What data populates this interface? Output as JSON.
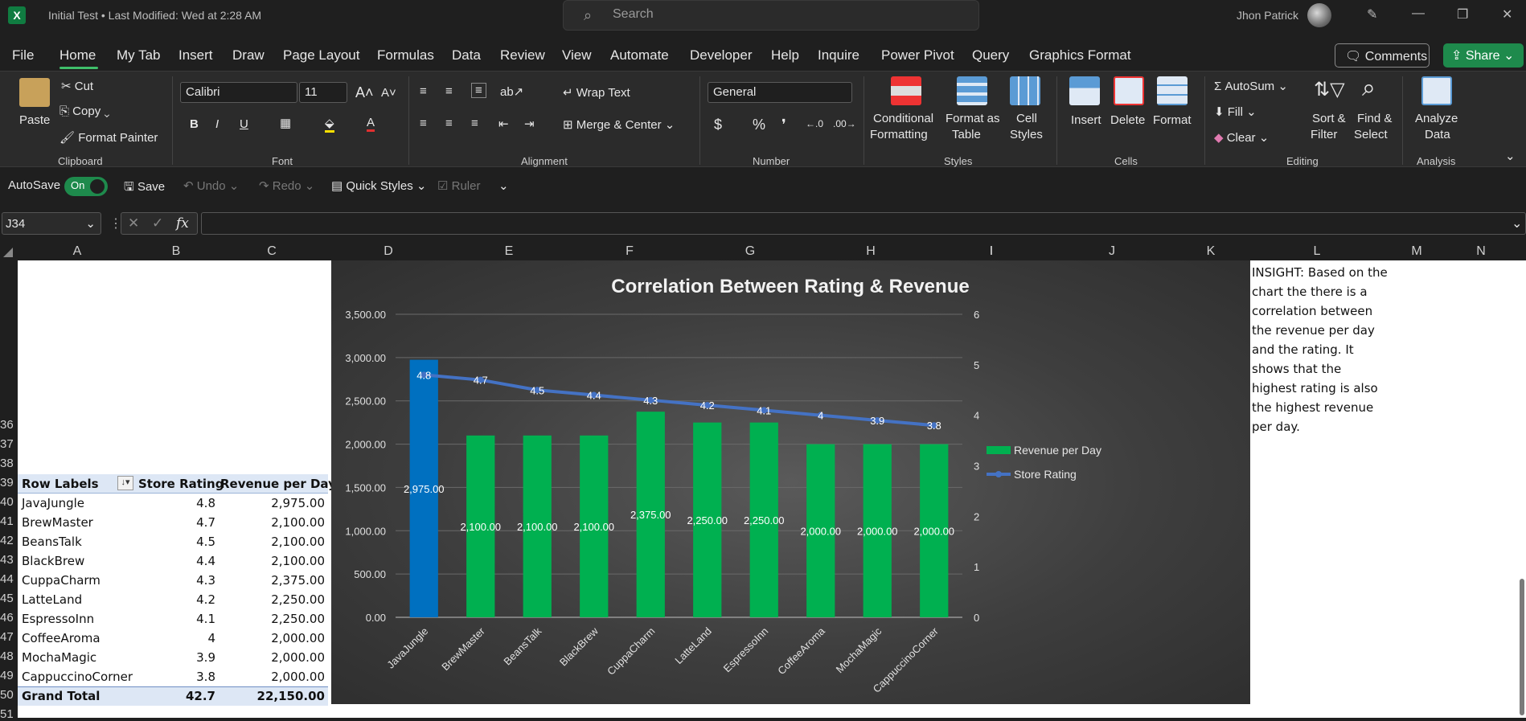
{
  "window": {
    "title": "Initial Test • Last Modified: Wed at 2:28 AM",
    "search_placeholder": "Search",
    "user": "Jhon Patrick"
  },
  "menu": {
    "tabs": [
      "File",
      "Home",
      "My Tab",
      "Insert",
      "Draw",
      "Page Layout",
      "Formulas",
      "Data",
      "Review",
      "View",
      "Automate",
      "Developer",
      "Help",
      "Inquire",
      "Power Pivot",
      "Query",
      "Graphics Format"
    ],
    "comments": "Comments",
    "share": "Share"
  },
  "ribbon": {
    "paste": "Paste",
    "cut": "Cut",
    "copy": "Copy",
    "format_painter": "Format Painter",
    "clipboard": "Clipboard",
    "font_name": "Calibri",
    "font_size": "11",
    "font": "Font",
    "bold": "B",
    "italic": "I",
    "underline": "U",
    "wrap_text": "Wrap Text",
    "merge_center": "Merge & Center",
    "alignment": "Alignment",
    "number_format": "General",
    "number": "Number",
    "cond_format_1": "Conditional",
    "cond_format_2": "Formatting",
    "format_table_1": "Format as",
    "format_table_2": "Table",
    "cell_styles_1": "Cell",
    "cell_styles_2": "Styles",
    "styles": "Styles",
    "insert": "Insert",
    "delete": "Delete",
    "format": "Format",
    "cells": "Cells",
    "autosum": "AutoSum",
    "fill": "Fill",
    "clear": "Clear",
    "sort_1": "Sort &",
    "sort_2": "Filter",
    "find_1": "Find &",
    "find_2": "Select",
    "editing": "Editing",
    "analyze_1": "Analyze",
    "analyze_2": "Data",
    "analysis": "Analysis"
  },
  "qat": {
    "autosave": "AutoSave",
    "toggle": "On",
    "save": "Save",
    "undo": "Undo",
    "redo": "Redo",
    "quick_styles": "Quick Styles",
    "ruler": "Ruler"
  },
  "formula_bar": {
    "name_box": "J34",
    "fx": "fx",
    "value": ""
  },
  "columns": [
    "A",
    "B",
    "C",
    "D",
    "E",
    "F",
    "G",
    "H",
    "J",
    "K",
    "L",
    "M",
    "N"
  ],
  "rows": [
    "36",
    "37",
    "38",
    "39",
    "40",
    "41",
    "42",
    "43",
    "44",
    "45",
    "46",
    "47",
    "48",
    "49",
    "50",
    "51"
  ],
  "pivot": {
    "headers": [
      "Row Labels",
      "Store Rating",
      "Revenue per Day"
    ],
    "rows": [
      [
        "JavaJungle",
        "4.8",
        "2,975.00"
      ],
      [
        "BrewMaster",
        "4.7",
        "2,100.00"
      ],
      [
        "BeansTalk",
        "4.5",
        "2,100.00"
      ],
      [
        "BlackBrew",
        "4.4",
        "2,100.00"
      ],
      [
        "CuppaCharm",
        "4.3",
        "2,375.00"
      ],
      [
        "LatteLand",
        "4.2",
        "2,250.00"
      ],
      [
        "EspressoInn",
        "4.1",
        "2,250.00"
      ],
      [
        "CoffeeAroma",
        "4",
        "2,000.00"
      ],
      [
        "MochaMagic",
        "3.9",
        "2,000.00"
      ],
      [
        "CappuccinoCorner",
        "3.8",
        "2,000.00"
      ]
    ],
    "total": [
      "Grand Total",
      "42.7",
      "22,150.00"
    ]
  },
  "insight": "INSIGHT: Based on the chart the there is a correlation between the revenue per day and the rating. It shows that the highest rating is also the highest revenue per day.",
  "chart_data": {
    "type": "bar",
    "title": "Correlation Between Rating & Revenue",
    "categories": [
      "JavaJungle",
      "BrewMaster",
      "BeansTalk",
      "BlackBrew",
      "CuppaCharm",
      "LatteLand",
      "EspressoInn",
      "CoffeeAroma",
      "MochaMagic",
      "CappuccinoCorner"
    ],
    "series": [
      {
        "name": "Revenue per Day",
        "type": "bar",
        "axis": "left",
        "values": [
          2975,
          2100,
          2100,
          2100,
          2375,
          2250,
          2250,
          2000,
          2000,
          2000
        ],
        "labels": [
          "2,975.00",
          "2,100.00",
          "2,100.00",
          "2,100.00",
          "2,375.00",
          "2,250.00",
          "2,250.00",
          "2,000.00",
          "2,000.00",
          "2,000.00"
        ],
        "color": "#00b050",
        "highlight_color": "#0070c0",
        "highlight_index": 0
      },
      {
        "name": "Store Rating",
        "type": "line",
        "axis": "right",
        "values": [
          4.8,
          4.7,
          4.5,
          4.4,
          4.3,
          4.2,
          4.1,
          4,
          3.9,
          3.8
        ],
        "labels": [
          "4.8",
          "4.7",
          "4.5",
          "4.4",
          "4.3",
          "4.2",
          "4.1",
          "4",
          "3.9",
          "3.8"
        ],
        "color": "#4472c4"
      }
    ],
    "ylim": [
      0,
      3500
    ],
    "yticks": [
      "0.00",
      "500.00",
      "1,000.00",
      "1,500.00",
      "2,000.00",
      "2,500.00",
      "3,000.00",
      "3,500.00"
    ],
    "y2lim": [
      0,
      6
    ],
    "y2ticks": [
      "0",
      "1",
      "2",
      "3",
      "4",
      "5",
      "6"
    ],
    "grid": true,
    "legend": "right"
  }
}
